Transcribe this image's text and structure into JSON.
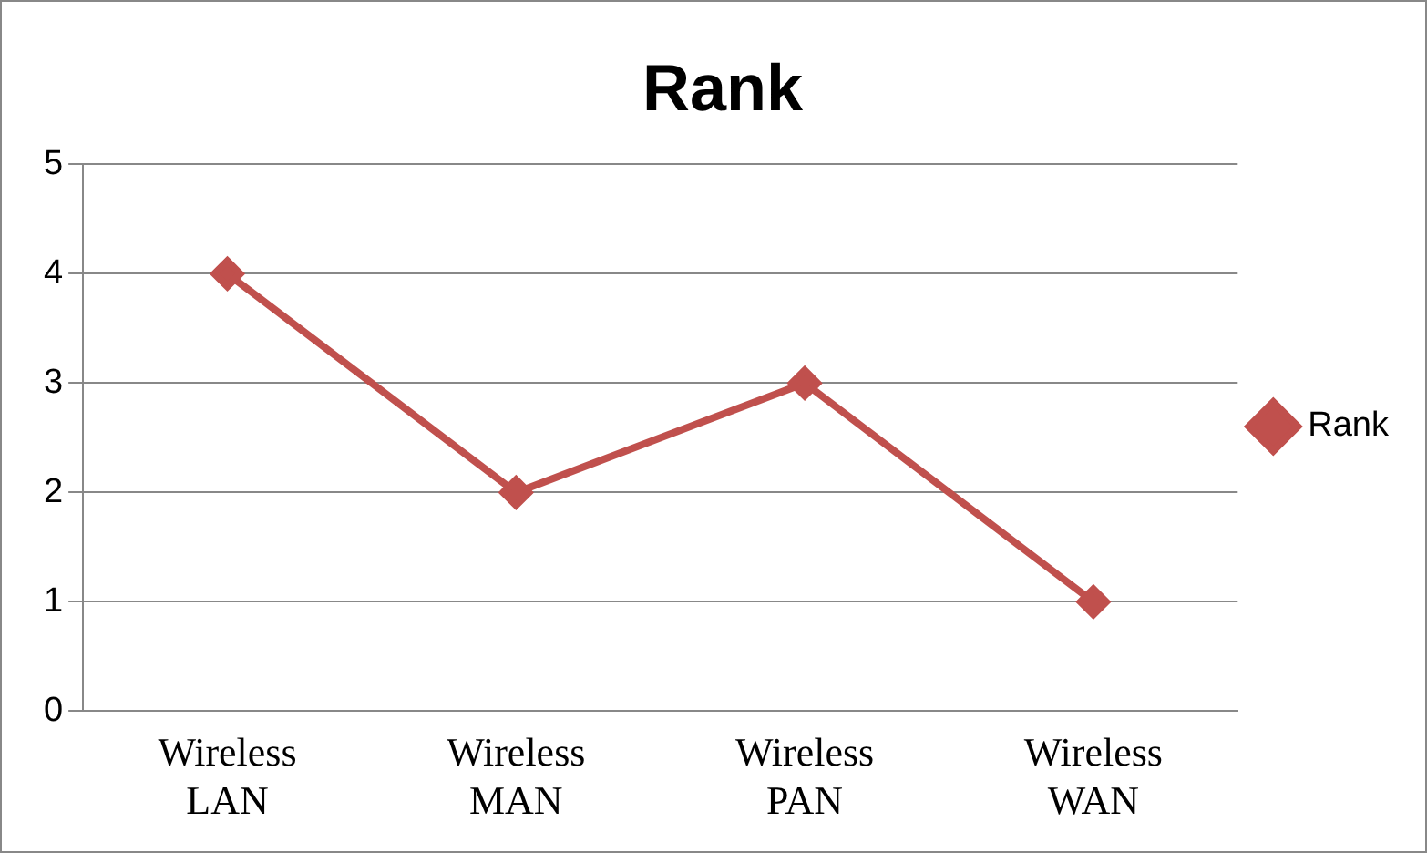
{
  "chart_data": {
    "type": "line",
    "title": "Rank",
    "categories": [
      "Wireless LAN",
      "Wireless MAN",
      "Wireless PAN",
      "Wireless WAN"
    ],
    "series": [
      {
        "name": "Rank",
        "color": "#c0504d",
        "values": [
          4,
          2,
          3,
          1
        ]
      }
    ],
    "ylim": [
      0,
      5
    ],
    "yticks": [
      0,
      1,
      2,
      3,
      4,
      5
    ],
    "grid": "y",
    "legend": "right",
    "marker": "diamond",
    "line_style": "solid"
  }
}
